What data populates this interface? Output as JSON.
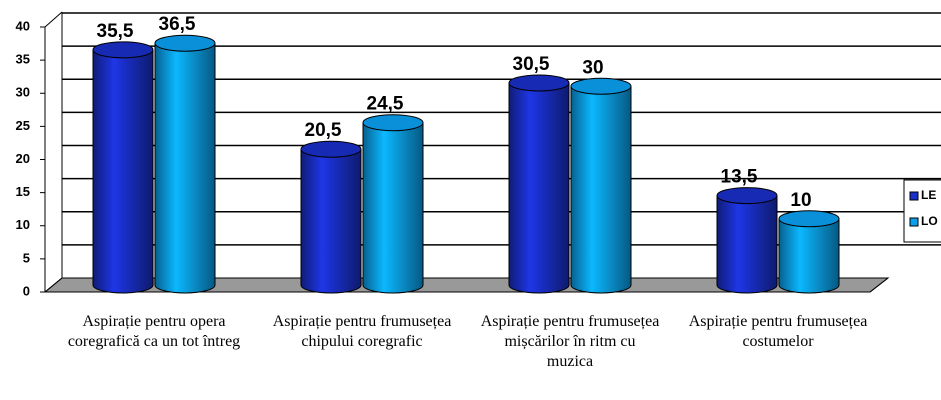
{
  "chart_data": {
    "type": "bar",
    "categories": [
      "Aspirație pentru opera coregrafică ca un tot întreg",
      "Aspirație pentru frumusețea chipului coregrafic",
      "Aspirație pentru frumusețea mișcărilor în ritm cu muzica",
      "Aspirație pentru frumusețea costumelor"
    ],
    "series": [
      {
        "name": "LE",
        "color": "#1a2fc8",
        "values": [
          35.5,
          20.5,
          30.5,
          13.5
        ],
        "value_labels": [
          "35,5",
          "20,5",
          "30,5",
          "13,5"
        ]
      },
      {
        "name": "LO",
        "color": "#0aa0f0",
        "values": [
          36.5,
          24.5,
          30,
          10
        ],
        "value_labels": [
          "36,5",
          "24,5",
          "30",
          "10"
        ]
      }
    ],
    "ylim": [
      0,
      40
    ],
    "yticks": [
      0,
      5,
      10,
      15,
      20,
      25,
      30,
      35,
      40
    ],
    "grid": true,
    "legend": "right"
  }
}
